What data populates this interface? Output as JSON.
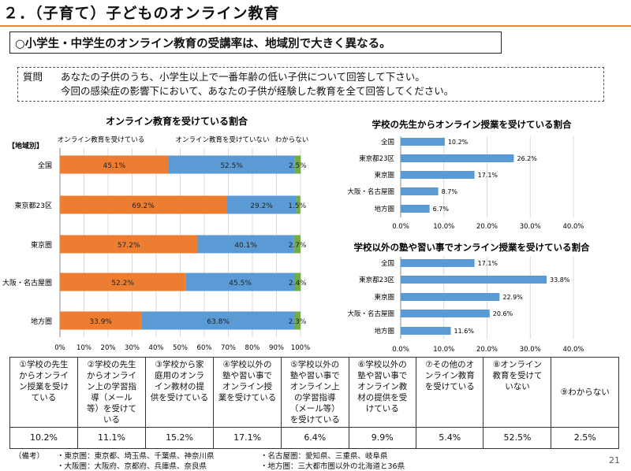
{
  "page": {
    "title": "２．（子育て）子どものオンライン教育",
    "headline": "○小学生・中学生のオンライン教育の受講率は、地域別で大きく異なる。",
    "question_label": "質問",
    "question_line1": "あなたの子供のうち、小学生以上で一番年齢の低い子供について回答して下さい。",
    "question_line2": "今回の感染症の影響下において、あなたの子供が経験した教育を全て回答してください。",
    "page_number": "21"
  },
  "colors": {
    "receiving": "#ed7d31",
    "not_receiving": "#5b9bd5",
    "unknown": "#70ad47",
    "accent_rule": "#e08a3c"
  },
  "chart_data": [
    {
      "type": "bar",
      "orientation": "horizontal",
      "stacked": true,
      "title": "オンライン教育を受けている割合",
      "category_header": "【地域別】",
      "categories": [
        "全国",
        "東京都23区",
        "東京圏",
        "大阪・名古屋圏",
        "地方圏"
      ],
      "series": [
        {
          "name": "オンライン教育を受けている",
          "values": [
            45.1,
            69.2,
            57.2,
            52.2,
            33.9
          ],
          "labels": [
            "45.1%",
            "69.2%",
            "57.2%",
            "52.2%",
            "33.9%"
          ]
        },
        {
          "name": "オンライン教育を受けていない",
          "values": [
            52.5,
            29.2,
            40.1,
            45.5,
            63.8
          ],
          "labels": [
            "52.5%",
            "29.2%",
            "40.1%",
            "45.5%",
            "63.8%"
          ]
        },
        {
          "name": "わからない",
          "values": [
            2.5,
            1.5,
            2.7,
            2.4,
            2.3
          ],
          "labels": [
            "2.5%",
            "1.5%",
            "2.7%",
            "2.4%",
            "2.3%"
          ]
        }
      ],
      "xlim": [
        0,
        100
      ],
      "xticks": [
        "0%",
        "10%",
        "20%",
        "30%",
        "40%",
        "50%",
        "60%",
        "70%",
        "80%",
        "90%",
        "100%"
      ],
      "grid": true,
      "legend": "top"
    },
    {
      "type": "bar",
      "orientation": "horizontal",
      "title": "学校の先生からオンライン授業を受けている割合",
      "categories": [
        "全国",
        "東京都23区",
        "東京圏",
        "大阪・名古屋圏",
        "地方圏"
      ],
      "values": [
        10.2,
        26.2,
        17.1,
        8.7,
        6.7
      ],
      "labels": [
        "10.2%",
        "26.2%",
        "17.1%",
        "8.7%",
        "6.7%"
      ],
      "xlim": [
        0,
        40
      ],
      "xticks": [
        "0.0%",
        "10.0%",
        "20.0%",
        "30.0%",
        "40.0%"
      ],
      "grid": true
    },
    {
      "type": "bar",
      "orientation": "horizontal",
      "title": "学校以外の塾や習い事でオンライン授業を受けている割合",
      "categories": [
        "全国",
        "東京都23区",
        "東京圏",
        "大阪・名古屋圏",
        "地方圏"
      ],
      "values": [
        17.1,
        33.8,
        22.9,
        20.6,
        11.6
      ],
      "labels": [
        "17.1%",
        "33.8%",
        "22.9%",
        "20.6%",
        "11.6%"
      ],
      "xlim": [
        0,
        40
      ],
      "xticks": [
        "0.0%",
        "10.0%",
        "20.0%",
        "30.0%",
        "40.0%"
      ],
      "grid": true
    },
    {
      "type": "table",
      "columns": [
        [
          "①学校の先生",
          "からオンライ",
          "ン授業を受け",
          "ている"
        ],
        [
          "②学校の先生",
          "からオンライ",
          "ン上の学習指",
          "導（メール",
          "等）を受けて",
          "いる"
        ],
        [
          "③学校から家",
          "庭用のオンラ",
          "イン教材の提",
          "供を受けている"
        ],
        [
          "④学校以外の",
          "塾や習い事で",
          "オンライン授",
          "業を受けている"
        ],
        [
          "⑤学校以外の",
          "塾や習い事で",
          "オンライン上",
          "の学習指導",
          "（メール等）",
          "を受けている"
        ],
        [
          "⑥学校以外の",
          "塾や習い事で",
          "オンライン教",
          "材の提供を受",
          "けている"
        ],
        [
          "⑦その他のオ",
          "ンライン教育",
          "を受けている"
        ],
        [
          "⑧オンライン",
          "教育を受けて",
          "いない"
        ],
        [
          "⑨わからない"
        ]
      ],
      "values": [
        "10.2%",
        "11.1%",
        "15.2%",
        "17.1%",
        "6.4%",
        "9.9%",
        "5.4%",
        "52.5%",
        "2.5%"
      ]
    }
  ],
  "remarks": {
    "label": "（備考）",
    "line1": "・東京圏：東京都、埼玉県、千葉県、神奈川県",
    "line2": "・大阪圏：大阪府、京都府、兵庫県、奈良県",
    "line3": "・名古屋圏：愛知県、三重県、岐阜県",
    "line4": "・地方圏：三大都市圏以外の北海道と36県"
  }
}
